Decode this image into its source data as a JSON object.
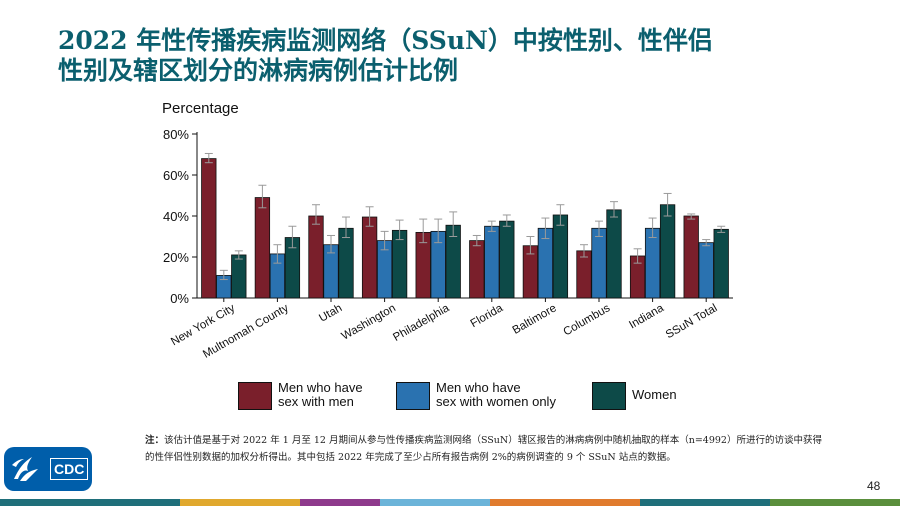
{
  "title": {
    "line1": "2022 年性传播疾病监测网络（SSuN）中按性别、性伴侣",
    "line2": "性别及辖区划分的淋病病例估计比例"
  },
  "chart_data": {
    "type": "bar",
    "ylabel": "Percentage",
    "xlabel": "",
    "ylim": [
      0,
      80
    ],
    "yticks": [
      "0%",
      "20%",
      "40%",
      "60%",
      "80%"
    ],
    "categories": [
      "New York City",
      "Multnomah County",
      "Utah",
      "Washington",
      "Philadelphia",
      "Florida",
      "Baltimore",
      "Columbus",
      "Indiana",
      "SSuN Total"
    ],
    "series": [
      {
        "name": "Men who have sex with men",
        "color": "#7a1f2b",
        "values": [
          68,
          49,
          40,
          39.5,
          32,
          28,
          25.5,
          23,
          20.5,
          40
        ],
        "error_low": [
          66,
          44,
          36,
          35,
          27,
          25.5,
          21.5,
          20,
          17,
          38.5
        ],
        "error_high": [
          70.5,
          55,
          45.5,
          44.5,
          38.5,
          30.5,
          30,
          26,
          24,
          41
        ]
      },
      {
        "name": "Men who have sex with women only",
        "color": "#2a72b0",
        "values": [
          11,
          21.5,
          26,
          28,
          32.5,
          35,
          34,
          34,
          34,
          27
        ],
        "error_low": [
          9,
          17,
          22,
          23.5,
          27,
          32.5,
          29,
          30,
          29.5,
          25.5
        ],
        "error_high": [
          13.5,
          26,
          30.5,
          32.5,
          38.5,
          37.5,
          39,
          37.5,
          39,
          28.5
        ]
      },
      {
        "name": "Women",
        "color": "#0d4a48",
        "values": [
          21,
          29.5,
          34,
          33,
          35.5,
          37.5,
          40.5,
          43,
          45.5,
          33.5
        ],
        "error_low": [
          19,
          24.5,
          29.5,
          28.5,
          30,
          35,
          35.5,
          39.5,
          40,
          32
        ],
        "error_high": [
          23,
          35,
          39.5,
          38,
          42,
          40.5,
          45.5,
          47,
          51,
          35
        ]
      }
    ],
    "legend": [
      {
        "line1": "Men who have",
        "line2": "sex with men"
      },
      {
        "line1": "Men who have",
        "line2": "sex with women only"
      },
      {
        "line1": "Women",
        "line2": ""
      }
    ],
    "legend_position": "bottom"
  },
  "note": {
    "label": "注：",
    "text": "该估计值是基于对 2022 年 1 月至 12 月期间从参与性传播疾病监测网络（SSuN）辖区报告的淋病病例中随机抽取的样本（n=4992）所进行的访谈中获得的性伴侣性别数据的加权分析得出。其中包括 2022 年完成了至少占所有报告病例 2%的病例调查的 9 个 SSuN 站点的数据。"
  },
  "page_number": "48",
  "logo": {
    "text": "CDC"
  },
  "stripe_colors": [
    "#1f6f7a",
    "#e0a82e",
    "#8e3a8c",
    "#6cb4d9",
    "#e07b2e",
    "#1f6f7a",
    "#5a8f3c"
  ]
}
